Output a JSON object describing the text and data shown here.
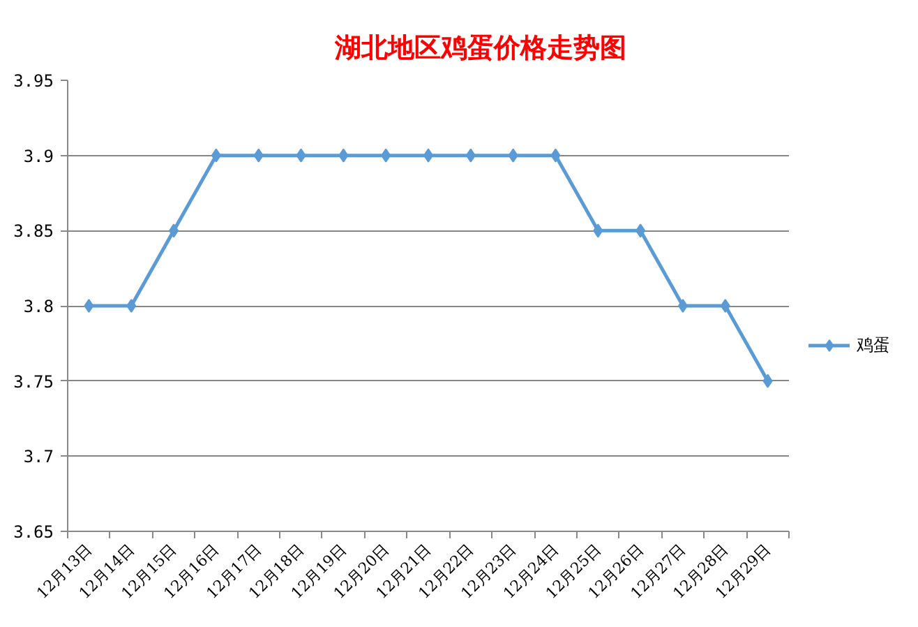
{
  "chart_data": {
    "type": "line",
    "title": "湖北地区鸡蛋价格走势图",
    "categories": [
      "12月13日",
      "12月14日",
      "12月15日",
      "12月16日",
      "12月17日",
      "12月18日",
      "12月19日",
      "12月20日",
      "12月21日",
      "12月22日",
      "12月23日",
      "12月24日",
      "12月25日",
      "12月26日",
      "12月27日",
      "12月28日",
      "12月29日"
    ],
    "series": [
      {
        "name": "鸡蛋",
        "color": "#5b9bd5",
        "values": [
          3.8,
          3.8,
          3.85,
          3.9,
          3.9,
          3.9,
          3.9,
          3.9,
          3.9,
          3.9,
          3.9,
          3.9,
          3.85,
          3.85,
          3.8,
          3.8,
          3.75
        ]
      }
    ],
    "ylim": [
      3.65,
      3.95
    ],
    "yticks": [
      3.65,
      3.7,
      3.75,
      3.8,
      3.85,
      3.9,
      3.95
    ],
    "grid": "y",
    "legend": "right",
    "marker": "diamond",
    "line_style": "solid"
  }
}
